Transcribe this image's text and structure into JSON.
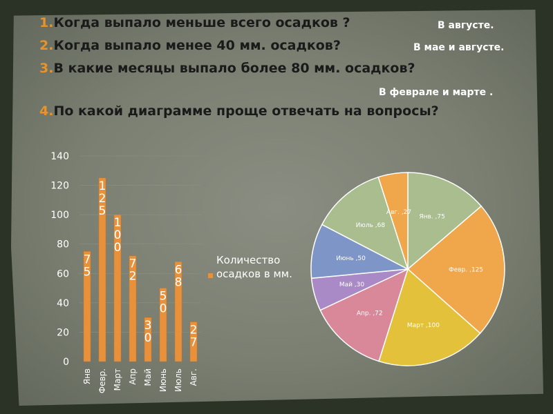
{
  "questions": [
    {
      "num": "1.",
      "text": "Когда выпало меньше всего осадков ?"
    },
    {
      "num": "2.",
      "text": "Когда выпало менее 40 мм. осадков?"
    },
    {
      "num": "3.",
      "text": "В какие месяцы выпало  более  80 мм. осадков?"
    },
    {
      "num": "4.",
      "text": "По какой диаграмме проще отвечать на вопросы?"
    }
  ],
  "answers": {
    "a1": "В августе.",
    "a2": "В мае и августе.",
    "a3": "В феврале и марте ."
  },
  "colors": {
    "accent": "#e8922c",
    "bar": "#e8913a",
    "pie": [
      "#a9bd8f",
      "#f0a64a",
      "#e3c13a",
      "#d9889a",
      "#a98ac6",
      "#7d96c7",
      "#a9bd8f",
      "#f0a64a"
    ]
  },
  "chart_data": [
    {
      "type": "bar",
      "categories": [
        "Янв",
        "Февр.",
        "Март",
        "Апр",
        "Май",
        "Июнь",
        "Июль",
        "Авг."
      ],
      "values": [
        75,
        125,
        100,
        72,
        30,
        50,
        68,
        27
      ],
      "data_labels": [
        "7\n5",
        "1\n2\n5",
        "1\n0\n0",
        "7\n2",
        "3\n0",
        "5\n0",
        "6\n8",
        "2\n7"
      ],
      "yticks": [
        0,
        20,
        40,
        60,
        80,
        100,
        120,
        140
      ],
      "ylim": [
        0,
        140
      ],
      "legend": "Количество осадков в мм.",
      "legend_position": "right",
      "grid": true
    },
    {
      "type": "pie",
      "labels": [
        "Янв. ,75",
        "Февр. ,125",
        "Март ,100",
        "Апр. ,72",
        "Май ,30",
        "Июнь ,50",
        "Июль ,68",
        "Авг. ,27"
      ],
      "categories": [
        "Янв.",
        "Февр.",
        "Март",
        "Апр.",
        "Май",
        "Июнь",
        "Июль",
        "Авг."
      ],
      "values": [
        75,
        125,
        100,
        72,
        30,
        50,
        68,
        27
      ]
    }
  ]
}
